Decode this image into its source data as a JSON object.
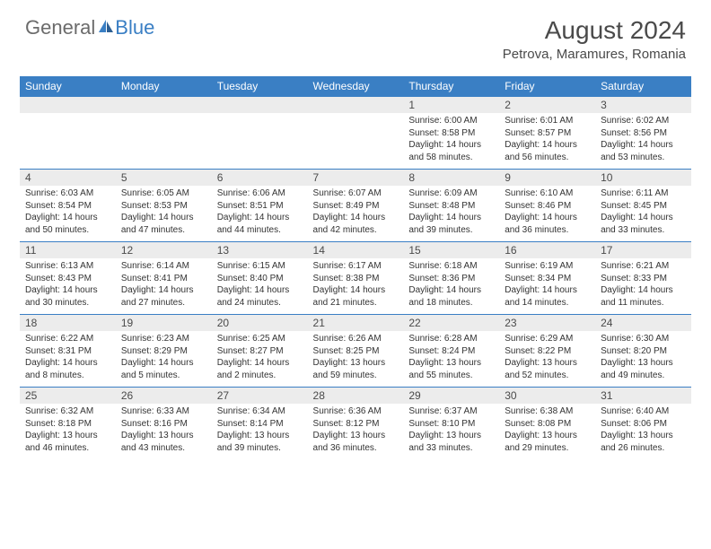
{
  "brand": {
    "part1": "General",
    "part2": "Blue"
  },
  "title": "August 2024",
  "location": "Petrova, Maramures, Romania",
  "colors": {
    "header_bg": "#3a7fc4",
    "header_text": "#ffffff",
    "daynum_bg": "#ececec",
    "border": "#3a7fc4",
    "text": "#333333",
    "logo_gray": "#6b6b6b",
    "logo_blue": "#3a7fc4",
    "background": "#ffffff"
  },
  "typography": {
    "title_fontsize": 28,
    "location_fontsize": 15,
    "header_fontsize": 12,
    "daynum_fontsize": 12,
    "details_fontsize": 10
  },
  "weekdays": [
    "Sunday",
    "Monday",
    "Tuesday",
    "Wednesday",
    "Thursday",
    "Friday",
    "Saturday"
  ],
  "weeks": [
    [
      {
        "n": "",
        "sr": "",
        "ss": "",
        "dl": ""
      },
      {
        "n": "",
        "sr": "",
        "ss": "",
        "dl": ""
      },
      {
        "n": "",
        "sr": "",
        "ss": "",
        "dl": ""
      },
      {
        "n": "",
        "sr": "",
        "ss": "",
        "dl": ""
      },
      {
        "n": "1",
        "sr": "Sunrise: 6:00 AM",
        "ss": "Sunset: 8:58 PM",
        "dl": "Daylight: 14 hours and 58 minutes."
      },
      {
        "n": "2",
        "sr": "Sunrise: 6:01 AM",
        "ss": "Sunset: 8:57 PM",
        "dl": "Daylight: 14 hours and 56 minutes."
      },
      {
        "n": "3",
        "sr": "Sunrise: 6:02 AM",
        "ss": "Sunset: 8:56 PM",
        "dl": "Daylight: 14 hours and 53 minutes."
      }
    ],
    [
      {
        "n": "4",
        "sr": "Sunrise: 6:03 AM",
        "ss": "Sunset: 8:54 PM",
        "dl": "Daylight: 14 hours and 50 minutes."
      },
      {
        "n": "5",
        "sr": "Sunrise: 6:05 AM",
        "ss": "Sunset: 8:53 PM",
        "dl": "Daylight: 14 hours and 47 minutes."
      },
      {
        "n": "6",
        "sr": "Sunrise: 6:06 AM",
        "ss": "Sunset: 8:51 PM",
        "dl": "Daylight: 14 hours and 44 minutes."
      },
      {
        "n": "7",
        "sr": "Sunrise: 6:07 AM",
        "ss": "Sunset: 8:49 PM",
        "dl": "Daylight: 14 hours and 42 minutes."
      },
      {
        "n": "8",
        "sr": "Sunrise: 6:09 AM",
        "ss": "Sunset: 8:48 PM",
        "dl": "Daylight: 14 hours and 39 minutes."
      },
      {
        "n": "9",
        "sr": "Sunrise: 6:10 AM",
        "ss": "Sunset: 8:46 PM",
        "dl": "Daylight: 14 hours and 36 minutes."
      },
      {
        "n": "10",
        "sr": "Sunrise: 6:11 AM",
        "ss": "Sunset: 8:45 PM",
        "dl": "Daylight: 14 hours and 33 minutes."
      }
    ],
    [
      {
        "n": "11",
        "sr": "Sunrise: 6:13 AM",
        "ss": "Sunset: 8:43 PM",
        "dl": "Daylight: 14 hours and 30 minutes."
      },
      {
        "n": "12",
        "sr": "Sunrise: 6:14 AM",
        "ss": "Sunset: 8:41 PM",
        "dl": "Daylight: 14 hours and 27 minutes."
      },
      {
        "n": "13",
        "sr": "Sunrise: 6:15 AM",
        "ss": "Sunset: 8:40 PM",
        "dl": "Daylight: 14 hours and 24 minutes."
      },
      {
        "n": "14",
        "sr": "Sunrise: 6:17 AM",
        "ss": "Sunset: 8:38 PM",
        "dl": "Daylight: 14 hours and 21 minutes."
      },
      {
        "n": "15",
        "sr": "Sunrise: 6:18 AM",
        "ss": "Sunset: 8:36 PM",
        "dl": "Daylight: 14 hours and 18 minutes."
      },
      {
        "n": "16",
        "sr": "Sunrise: 6:19 AM",
        "ss": "Sunset: 8:34 PM",
        "dl": "Daylight: 14 hours and 14 minutes."
      },
      {
        "n": "17",
        "sr": "Sunrise: 6:21 AM",
        "ss": "Sunset: 8:33 PM",
        "dl": "Daylight: 14 hours and 11 minutes."
      }
    ],
    [
      {
        "n": "18",
        "sr": "Sunrise: 6:22 AM",
        "ss": "Sunset: 8:31 PM",
        "dl": "Daylight: 14 hours and 8 minutes."
      },
      {
        "n": "19",
        "sr": "Sunrise: 6:23 AM",
        "ss": "Sunset: 8:29 PM",
        "dl": "Daylight: 14 hours and 5 minutes."
      },
      {
        "n": "20",
        "sr": "Sunrise: 6:25 AM",
        "ss": "Sunset: 8:27 PM",
        "dl": "Daylight: 14 hours and 2 minutes."
      },
      {
        "n": "21",
        "sr": "Sunrise: 6:26 AM",
        "ss": "Sunset: 8:25 PM",
        "dl": "Daylight: 13 hours and 59 minutes."
      },
      {
        "n": "22",
        "sr": "Sunrise: 6:28 AM",
        "ss": "Sunset: 8:24 PM",
        "dl": "Daylight: 13 hours and 55 minutes."
      },
      {
        "n": "23",
        "sr": "Sunrise: 6:29 AM",
        "ss": "Sunset: 8:22 PM",
        "dl": "Daylight: 13 hours and 52 minutes."
      },
      {
        "n": "24",
        "sr": "Sunrise: 6:30 AM",
        "ss": "Sunset: 8:20 PM",
        "dl": "Daylight: 13 hours and 49 minutes."
      }
    ],
    [
      {
        "n": "25",
        "sr": "Sunrise: 6:32 AM",
        "ss": "Sunset: 8:18 PM",
        "dl": "Daylight: 13 hours and 46 minutes."
      },
      {
        "n": "26",
        "sr": "Sunrise: 6:33 AM",
        "ss": "Sunset: 8:16 PM",
        "dl": "Daylight: 13 hours and 43 minutes."
      },
      {
        "n": "27",
        "sr": "Sunrise: 6:34 AM",
        "ss": "Sunset: 8:14 PM",
        "dl": "Daylight: 13 hours and 39 minutes."
      },
      {
        "n": "28",
        "sr": "Sunrise: 6:36 AM",
        "ss": "Sunset: 8:12 PM",
        "dl": "Daylight: 13 hours and 36 minutes."
      },
      {
        "n": "29",
        "sr": "Sunrise: 6:37 AM",
        "ss": "Sunset: 8:10 PM",
        "dl": "Daylight: 13 hours and 33 minutes."
      },
      {
        "n": "30",
        "sr": "Sunrise: 6:38 AM",
        "ss": "Sunset: 8:08 PM",
        "dl": "Daylight: 13 hours and 29 minutes."
      },
      {
        "n": "31",
        "sr": "Sunrise: 6:40 AM",
        "ss": "Sunset: 8:06 PM",
        "dl": "Daylight: 13 hours and 26 minutes."
      }
    ]
  ]
}
